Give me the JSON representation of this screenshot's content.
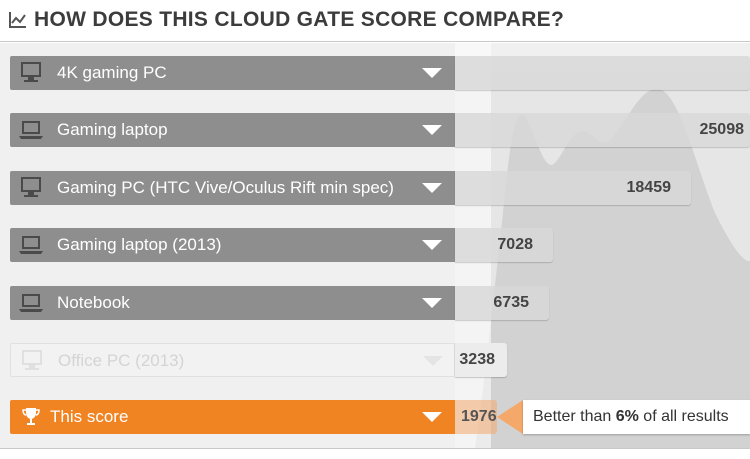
{
  "header": {
    "title": "HOW DOES THIS CLOUD GATE SCORE COMPARE?",
    "icon": "line-chart-icon"
  },
  "rows": [
    {
      "name": "4K gaming PC",
      "score": "",
      "icon": "monitor-icon",
      "faded": false
    },
    {
      "name": "Gaming laptop",
      "score": "25098",
      "icon": "laptop-icon",
      "faded": false
    },
    {
      "name": "Gaming PC (HTC Vive/Oculus Rift min spec)",
      "score": "18459",
      "icon": "monitor-icon",
      "faded": false
    },
    {
      "name": "Gaming laptop (2013)",
      "score": "7028",
      "icon": "laptop-icon",
      "faded": false
    },
    {
      "name": "Notebook",
      "score": "6735",
      "icon": "laptop-icon",
      "faded": false
    },
    {
      "name": "Office PC (2013)",
      "score": "3238",
      "icon": "monitor-icon",
      "faded": true
    }
  ],
  "this_score": {
    "name": "This score",
    "score": "1976",
    "icon": "trophy-icon"
  },
  "callout": {
    "prefix": "Better than ",
    "percent": "6%",
    "suffix": " of all results"
  },
  "colors": {
    "accent": "#f08322",
    "row_label": "#8e8e8e",
    "bar": "#d8d8d8",
    "distribution": "#dcdcdc"
  }
}
